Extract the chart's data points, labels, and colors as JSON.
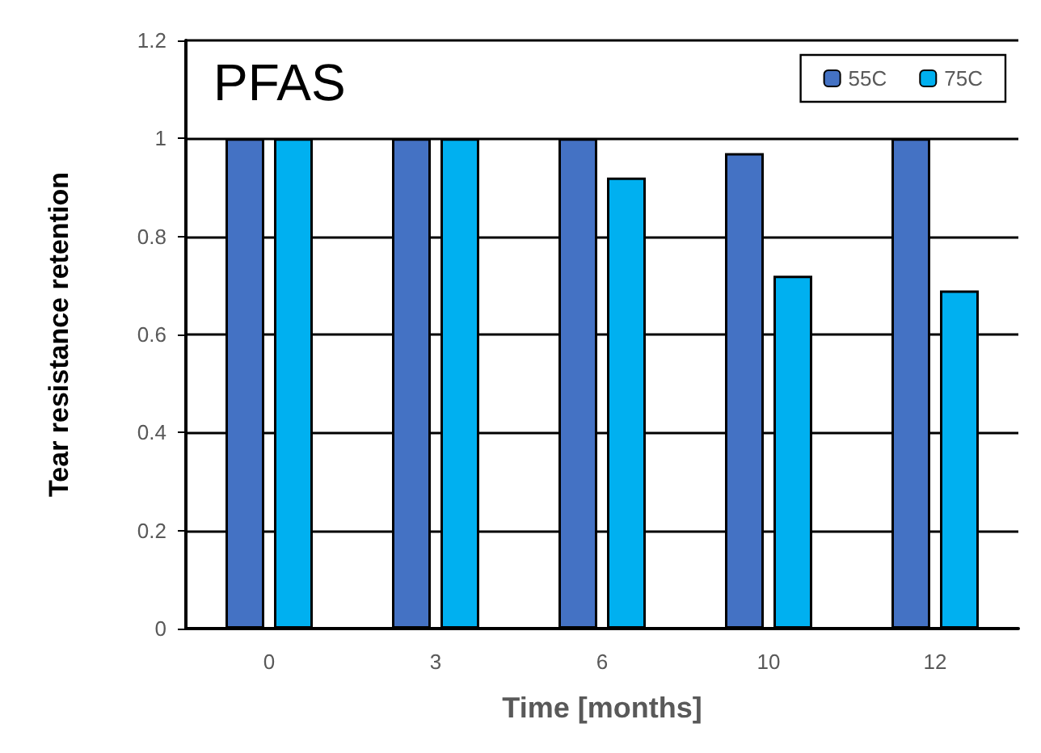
{
  "chart_data": {
    "type": "bar",
    "title": "PFAS",
    "xlabel": "Time [months]",
    "ylabel": "Tear resistance retention",
    "categories": [
      "0",
      "3",
      "6",
      "10",
      "12"
    ],
    "series": [
      {
        "name": "55C",
        "color": "#4472c4",
        "values": [
          1,
          1,
          1,
          0.97,
          1
        ]
      },
      {
        "name": "75C",
        "color": "#00b0f0",
        "values": [
          1,
          1,
          0.92,
          0.72,
          0.69
        ]
      }
    ],
    "ylim": [
      0,
      1.2
    ],
    "yticks": [
      0,
      0.2,
      0.4,
      0.6,
      0.8,
      1,
      1.2
    ],
    "grid": "y",
    "legend": "top right"
  }
}
